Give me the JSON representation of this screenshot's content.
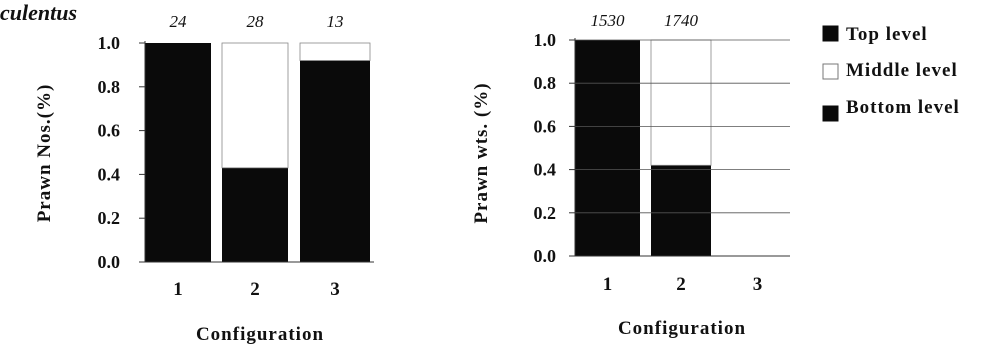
{
  "figure_title": "culentus",
  "legend": {
    "items": [
      {
        "label": "Top level",
        "color": "#0a0a0a",
        "style": "filled"
      },
      {
        "label": "Middle level",
        "color": "#ffffff",
        "style": "outline"
      },
      {
        "label": "Bottom level",
        "color": "#0a0a0a",
        "style": "filled"
      }
    ]
  },
  "chart_data": [
    {
      "type": "bar",
      "stacked": true,
      "categories": [
        "1",
        "2",
        "3"
      ],
      "ylabel": "Prawn Nos.(%)",
      "xlabel": "Configuration",
      "ylim": [
        0,
        1.0
      ],
      "yticks": [
        "0.0",
        "0.2",
        "0.4",
        "0.6",
        "0.8",
        "1.0"
      ],
      "top_labels": [
        "24",
        "28",
        "13"
      ],
      "series": [
        {
          "name": "Bottom level",
          "color": "#0a0a0a",
          "values": [
            1.0,
            0.43,
            0.92
          ]
        },
        {
          "name": "Middle level",
          "color": "#ffffff",
          "values": [
            0.0,
            0.57,
            0.08
          ]
        }
      ]
    },
    {
      "type": "bar",
      "stacked": true,
      "categories": [
        "1",
        "2",
        "3"
      ],
      "ylabel": "Prawn wts. (%)",
      "xlabel": "Configuration",
      "ylim": [
        0,
        1.0
      ],
      "yticks": [
        "0.0",
        "0.2",
        "0.4",
        "0.6",
        "0.8",
        "1.0"
      ],
      "top_labels": [
        "1530",
        "1740",
        ""
      ],
      "series": [
        {
          "name": "Bottom level",
          "color": "#0a0a0a",
          "values": [
            1.0,
            0.42,
            0.0
          ]
        },
        {
          "name": "Middle level",
          "color": "#ffffff",
          "values": [
            0.0,
            0.58,
            0.0
          ]
        }
      ]
    }
  ]
}
